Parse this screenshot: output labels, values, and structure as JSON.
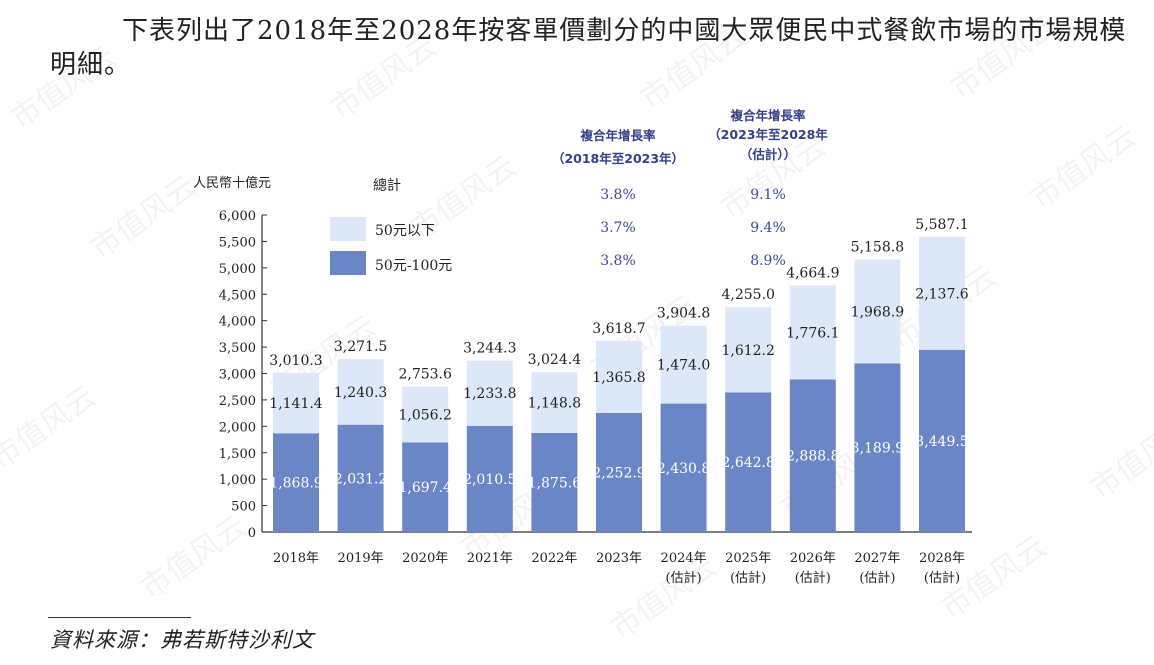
{
  "intro_text": "下表列出了2018年至2028年按客單價劃分的中國大眾便民中式餐飲市場的市場規模明細。",
  "source_text": "資料來源：弗若斯特沙利文",
  "watermark_text": "市值风云",
  "colors": {
    "upper": "#dce8f8",
    "lower": "#6b86c6",
    "cagr_text": "#34408a"
  },
  "chart_data": {
    "type": "bar",
    "stacked": true,
    "unit_label": "人民幣十億元",
    "categories": [
      "2018年",
      "2019年",
      "2020年",
      "2021年",
      "2022年",
      "2023年",
      "2024年\n(估計)",
      "2025年\n(估計)",
      "2026年\n(估計)",
      "2027年\n(估計)",
      "2028年\n(估計)"
    ],
    "series": [
      {
        "name": "50元-100元",
        "display": [
          "1,868.9",
          "2,031.2",
          "1,697.4",
          "2,010.5",
          "1,875.6",
          "2,252.9",
          "2,430.8",
          "2,642.8",
          "2,888.8",
          "3,189.9",
          "3,449.5"
        ],
        "values": [
          1868.9,
          2031.2,
          1697.4,
          2010.5,
          1875.6,
          2252.9,
          2430.8,
          2642.8,
          2888.8,
          3189.9,
          3449.5
        ]
      },
      {
        "name": "50元以下",
        "display": [
          "1,141.4",
          "1,240.3",
          "1,056.2",
          "1,233.8",
          "1,148.8",
          "1,365.8",
          "1,474.0",
          "1,612.2",
          "1,776.1",
          "1,968.9",
          "2,137.6"
        ],
        "values": [
          1141.4,
          1240.3,
          1056.2,
          1233.8,
          1148.8,
          1365.8,
          1474.0,
          1612.2,
          1776.1,
          1968.9,
          2137.6
        ]
      }
    ],
    "totals_display": [
      "3,010.3",
      "3,271.5",
      "2,753.6",
      "3,244.3",
      "3,024.4",
      "3,618.7",
      "3,904.8",
      "4,255.0",
      "4,664.9",
      "5,158.8",
      "5,587.1"
    ],
    "totals": [
      3010.3,
      3271.5,
      2753.6,
      3244.3,
      3024.4,
      3618.7,
      3904.8,
      4255.0,
      4664.9,
      5158.8,
      5587.1
    ],
    "ylim": [
      0,
      6000
    ],
    "yticks": [
      "0",
      "500",
      "1,000",
      "1,500",
      "2,000",
      "2,500",
      "3,000",
      "3,500",
      "4,000",
      "4,500",
      "5,000",
      "5,500",
      "6,000"
    ],
    "ytick_values": [
      0,
      500,
      1000,
      1500,
      2000,
      2500,
      3000,
      3500,
      4000,
      4500,
      5000,
      5500,
      6000
    ],
    "legend": {
      "total_label": "總計",
      "upper_label": "50元以下",
      "lower_label": "50元-100元"
    },
    "cagr": [
      {
        "title_lines": [
          "複合年增長率",
          "（2018年至2023年）"
        ],
        "values": [
          "3.8%",
          "3.7%",
          "3.8%"
        ]
      },
      {
        "title_lines": [
          "複合年增長率",
          "（2023年至2028年",
          "（估計））"
        ],
        "values": [
          "9.1%",
          "9.4%",
          "8.9%"
        ]
      }
    ]
  }
}
